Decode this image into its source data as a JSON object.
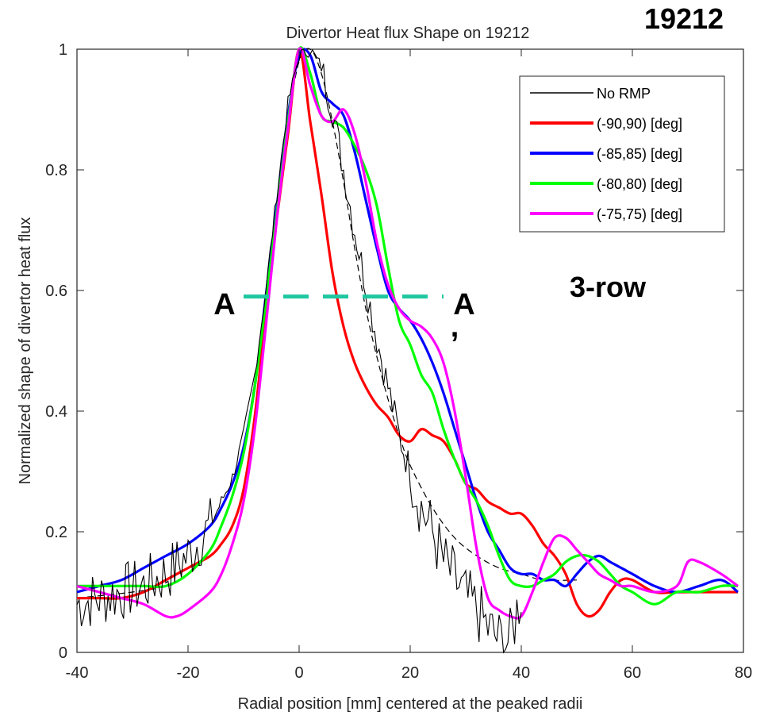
{
  "chart_data": {
    "type": "line",
    "title": "Divertor Heat flux Shape on 19212",
    "xlabel": "Radial position [mm] centered at the peaked radii",
    "ylabel": "Normalized shape of divertor heat flux",
    "xlim": [
      -40,
      80
    ],
    "ylim": [
      0,
      1
    ],
    "xticks": [
      -40,
      -20,
      0,
      20,
      40,
      60,
      80
    ],
    "yticks": [
      0,
      0.2,
      0.4,
      0.6,
      0.8,
      1
    ],
    "xtick_labels": [
      "-40",
      "-20",
      "0",
      "20",
      "40",
      "60",
      "80"
    ],
    "ytick_labels": [
      "0",
      "0.2",
      "0.4",
      "0.6",
      "0.8",
      "1"
    ],
    "grid": false,
    "legend_position": "top-right",
    "series": [
      {
        "name": "No RMP",
        "color": "#000000",
        "style": "noisy",
        "x": [
          -40,
          -36,
          -32,
          -28,
          -24,
          -20,
          -16,
          -12,
          -10,
          -8,
          -6,
          -4,
          -2,
          0,
          2,
          4,
          6,
          8,
          10,
          12,
          14,
          16,
          18,
          20,
          22,
          24,
          26,
          28,
          30,
          32,
          34,
          36,
          38,
          40
        ],
        "values": [
          0.08,
          0.09,
          0.1,
          0.11,
          0.13,
          0.16,
          0.21,
          0.29,
          0.36,
          0.46,
          0.6,
          0.76,
          0.91,
          0.99,
          1.0,
          0.97,
          0.9,
          0.8,
          0.7,
          0.61,
          0.52,
          0.44,
          0.36,
          0.3,
          0.24,
          0.2,
          0.15,
          0.12,
          0.09,
          0.07,
          0.04,
          0.02,
          0.02,
          0.1
        ]
      },
      {
        "name": "fit",
        "color": "#000000",
        "style": "dashed",
        "x": [
          -40,
          -30,
          -24,
          -20,
          -16,
          -12,
          -10,
          -8,
          -6,
          -4,
          -2,
          0,
          2,
          4,
          6,
          8,
          10,
          12,
          14,
          16,
          18,
          20,
          24,
          28,
          32,
          36,
          40,
          44,
          50
        ],
        "values": [
          0.09,
          0.1,
          0.11,
          0.13,
          0.17,
          0.26,
          0.34,
          0.45,
          0.59,
          0.74,
          0.88,
          0.98,
          1.0,
          0.96,
          0.88,
          0.78,
          0.67,
          0.57,
          0.49,
          0.42,
          0.36,
          0.31,
          0.24,
          0.19,
          0.16,
          0.14,
          0.13,
          0.12,
          0.12
        ]
      },
      {
        "name": "(-90,90) [deg]",
        "color": "#ff0000",
        "x": [
          -40,
          -36,
          -32,
          -28,
          -24,
          -20,
          -16,
          -14,
          -12,
          -10,
          -8,
          -6,
          -4,
          -2,
          0,
          2,
          4,
          6,
          8,
          10,
          12,
          14,
          16,
          18,
          20,
          22,
          24,
          26,
          28,
          30,
          32,
          34,
          36,
          38,
          40,
          42,
          44,
          46,
          48,
          50,
          52,
          54,
          56,
          58,
          60,
          64,
          68,
          72,
          76,
          79
        ],
        "values": [
          0.09,
          0.09,
          0.09,
          0.1,
          0.12,
          0.14,
          0.16,
          0.18,
          0.21,
          0.27,
          0.39,
          0.56,
          0.72,
          0.86,
          1.0,
          0.88,
          0.76,
          0.63,
          0.54,
          0.48,
          0.44,
          0.41,
          0.39,
          0.36,
          0.35,
          0.37,
          0.36,
          0.35,
          0.32,
          0.28,
          0.27,
          0.25,
          0.24,
          0.23,
          0.23,
          0.21,
          0.18,
          0.16,
          0.13,
          0.08,
          0.06,
          0.07,
          0.1,
          0.12,
          0.12,
          0.1,
          0.1,
          0.1,
          0.1,
          0.1
        ]
      },
      {
        "name": "(-85,85) [deg]",
        "color": "#0000ff",
        "x": [
          -40,
          -36,
          -32,
          -28,
          -24,
          -20,
          -16,
          -14,
          -12,
          -10,
          -8,
          -6,
          -4,
          -2,
          0,
          2,
          4,
          6,
          8,
          10,
          12,
          14,
          16,
          18,
          20,
          22,
          24,
          26,
          28,
          30,
          32,
          34,
          36,
          38,
          40,
          42,
          44,
          46,
          48,
          50,
          52,
          54,
          56,
          58,
          60,
          64,
          68,
          72,
          76,
          79
        ],
        "values": [
          0.1,
          0.11,
          0.12,
          0.14,
          0.16,
          0.18,
          0.21,
          0.24,
          0.28,
          0.34,
          0.44,
          0.59,
          0.74,
          0.89,
          0.99,
          0.99,
          0.93,
          0.91,
          0.89,
          0.83,
          0.75,
          0.67,
          0.6,
          0.57,
          0.55,
          0.52,
          0.48,
          0.43,
          0.37,
          0.31,
          0.25,
          0.2,
          0.17,
          0.14,
          0.13,
          0.13,
          0.12,
          0.12,
          0.11,
          0.13,
          0.15,
          0.16,
          0.15,
          0.14,
          0.13,
          0.11,
          0.1,
          0.11,
          0.12,
          0.1
        ]
      },
      {
        "name": "(-80,80) [deg]",
        "color": "#00ff00",
        "x": [
          -40,
          -36,
          -32,
          -28,
          -24,
          -20,
          -16,
          -14,
          -12,
          -10,
          -8,
          -6,
          -4,
          -2,
          0,
          2,
          4,
          6,
          8,
          10,
          12,
          14,
          16,
          18,
          20,
          22,
          24,
          26,
          28,
          30,
          32,
          34,
          36,
          38,
          40,
          42,
          44,
          46,
          48,
          50,
          52,
          54,
          56,
          58,
          60,
          64,
          68,
          72,
          76,
          79
        ],
        "values": [
          0.11,
          0.11,
          0.11,
          0.11,
          0.11,
          0.13,
          0.17,
          0.21,
          0.26,
          0.33,
          0.44,
          0.58,
          0.73,
          0.88,
          1.0,
          0.96,
          0.89,
          0.88,
          0.87,
          0.84,
          0.8,
          0.74,
          0.64,
          0.55,
          0.51,
          0.46,
          0.43,
          0.37,
          0.32,
          0.28,
          0.25,
          0.21,
          0.16,
          0.12,
          0.11,
          0.11,
          0.12,
          0.13,
          0.15,
          0.16,
          0.16,
          0.15,
          0.13,
          0.11,
          0.1,
          0.08,
          0.1,
          0.1,
          0.11,
          0.11
        ]
      },
      {
        "name": "(-75,75) [deg]",
        "color": "#ff00ff",
        "x": [
          -40,
          -36,
          -32,
          -28,
          -24,
          -22,
          -20,
          -16,
          -14,
          -12,
          -10,
          -8,
          -6,
          -4,
          -2,
          0,
          2,
          4,
          6,
          8,
          10,
          12,
          14,
          16,
          18,
          20,
          22,
          24,
          26,
          28,
          30,
          32,
          34,
          36,
          38,
          40,
          42,
          44,
          46,
          48,
          50,
          52,
          54,
          56,
          58,
          60,
          64,
          68,
          70,
          72,
          76,
          79
        ],
        "values": [
          0.11,
          0.1,
          0.09,
          0.08,
          0.06,
          0.06,
          0.07,
          0.1,
          0.13,
          0.18,
          0.25,
          0.37,
          0.54,
          0.72,
          0.87,
          1.0,
          0.94,
          0.89,
          0.88,
          0.9,
          0.86,
          0.78,
          0.68,
          0.61,
          0.57,
          0.55,
          0.54,
          0.52,
          0.48,
          0.4,
          0.29,
          0.17,
          0.09,
          0.07,
          0.06,
          0.06,
          0.1,
          0.15,
          0.19,
          0.19,
          0.17,
          0.15,
          0.13,
          0.12,
          0.11,
          0.11,
          0.1,
          0.11,
          0.15,
          0.15,
          0.13,
          0.11
        ]
      }
    ],
    "legend": [
      {
        "label": "No RMP",
        "color": "#000000"
      },
      {
        "label": "(-90,90) [deg]",
        "color": "#ff0000"
      },
      {
        "label": "(-85,85) [deg]",
        "color": "#0000ff"
      },
      {
        "label": "(-80,80) [deg]",
        "color": "#00ff00"
      },
      {
        "label": "(-75,75) [deg]",
        "color": "#ff00ff"
      }
    ],
    "annotations": {
      "shot_number": "19212",
      "config_label": "3-row",
      "cut_label_left": "A",
      "cut_label_right": "A",
      "cut_label_prime": ",",
      "cut_line": {
        "x1": -10,
        "x2": 26,
        "y": 0.59,
        "color": "#1fc7a0"
      }
    }
  }
}
